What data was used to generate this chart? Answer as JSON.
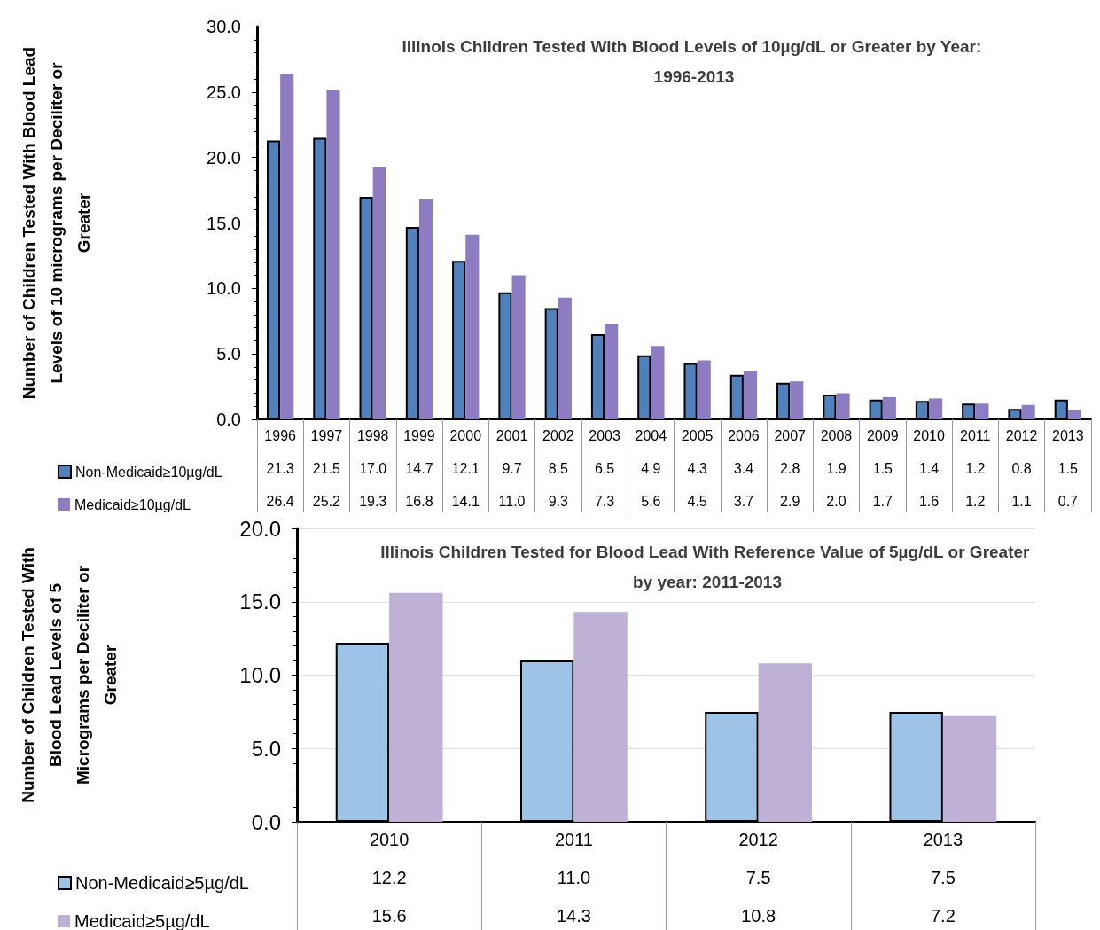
{
  "chart_data": [
    {
      "type": "bar",
      "title": "Illinois Children Tested With Blood Levels of 10µg/dL or Greater by Year: 1996-2013",
      "ylabel": "Number of Children Tested With Blood Lead Levels of 10 micrograms per Deciliter or Greater",
      "categories": [
        "1996",
        "1997",
        "1998",
        "1999",
        "2000",
        "2001",
        "2002",
        "2003",
        "2004",
        "2005",
        "2006",
        "2007",
        "2008",
        "2009",
        "2010",
        "2011",
        "2012",
        "2013"
      ],
      "series": [
        {
          "name": "Non-Medicaid≥10µg/dL",
          "color": "#4f81bd",
          "values": [
            21.3,
            21.5,
            17.0,
            14.7,
            12.1,
            9.7,
            8.5,
            6.5,
            4.9,
            4.3,
            3.4,
            2.8,
            1.9,
            1.5,
            1.4,
            1.2,
            0.8,
            1.5
          ],
          "value_labels": [
            "21.3",
            "21.5",
            "17.0",
            "14.7",
            "12.1",
            "9.7",
            "8.5",
            "6.5",
            "4.9",
            "4.3",
            "3.4",
            "2.8",
            "1.9",
            "1.5",
            "1.4",
            "1.2",
            "0.8",
            "1.5"
          ]
        },
        {
          "name": "Medicaid≥10µg/dL",
          "color": "#8e7cc3",
          "values": [
            26.4,
            25.2,
            19.3,
            16.8,
            14.1,
            11.0,
            9.3,
            7.3,
            5.6,
            4.5,
            3.7,
            2.9,
            2.0,
            1.7,
            1.6,
            1.2,
            1.1,
            0.7
          ],
          "value_labels": [
            "26.4",
            "25.2",
            "19.3",
            "16.8",
            "14.1",
            "11.0",
            "9.3",
            "7.3",
            "5.6",
            "4.5",
            "3.7",
            "2.9",
            "2.0",
            "1.7",
            "1.6",
            "1.2",
            "1.1",
            "0.7"
          ]
        }
      ],
      "ylim": [
        0,
        30
      ],
      "yticks": [
        {
          "value": 0,
          "label": "0.0"
        },
        {
          "value": 5,
          "label": "5.0"
        },
        {
          "value": 10,
          "label": "10.0"
        },
        {
          "value": 15,
          "label": "15.0"
        },
        {
          "value": 20,
          "label": "20.0"
        },
        {
          "value": 25,
          "label": "25.0"
        },
        {
          "value": 30,
          "label": "30.0"
        }
      ],
      "grid": false,
      "legend": "bottom"
    },
    {
      "type": "bar",
      "title": "Illinois Children Tested for Blood Lead With Reference Value of 5µg/dL or Greater by year: 2011-2013",
      "ylabel": "Number of Children Tested With Blood Lead Levels of 5 Micrograms per Deciliter or Greater",
      "categories": [
        "2010",
        "2011",
        "2012",
        "2013"
      ],
      "series": [
        {
          "name": "Non-Medicaid≥5µg/dL",
          "color": "#9dc3e6",
          "values": [
            12.2,
            11.0,
            7.5,
            7.5
          ],
          "value_labels": [
            "12.2",
            "11.0",
            "7.5",
            "7.5"
          ]
        },
        {
          "name": "Medicaid≥5µg/dL",
          "color": "#bfb1d5",
          "values": [
            15.6,
            14.3,
            10.8,
            7.2
          ],
          "value_labels": [
            "15.6",
            "14.3",
            "10.8",
            "7.2"
          ]
        }
      ],
      "ylim": [
        0,
        20
      ],
      "yticks": [
        {
          "value": 0,
          "label": "0.0"
        },
        {
          "value": 5,
          "label": "5.0"
        },
        {
          "value": 10,
          "label": "10.0"
        },
        {
          "value": 15,
          "label": "15.0"
        },
        {
          "value": 20,
          "label": "20.0"
        }
      ],
      "grid": "y",
      "legend": "bottom"
    }
  ]
}
